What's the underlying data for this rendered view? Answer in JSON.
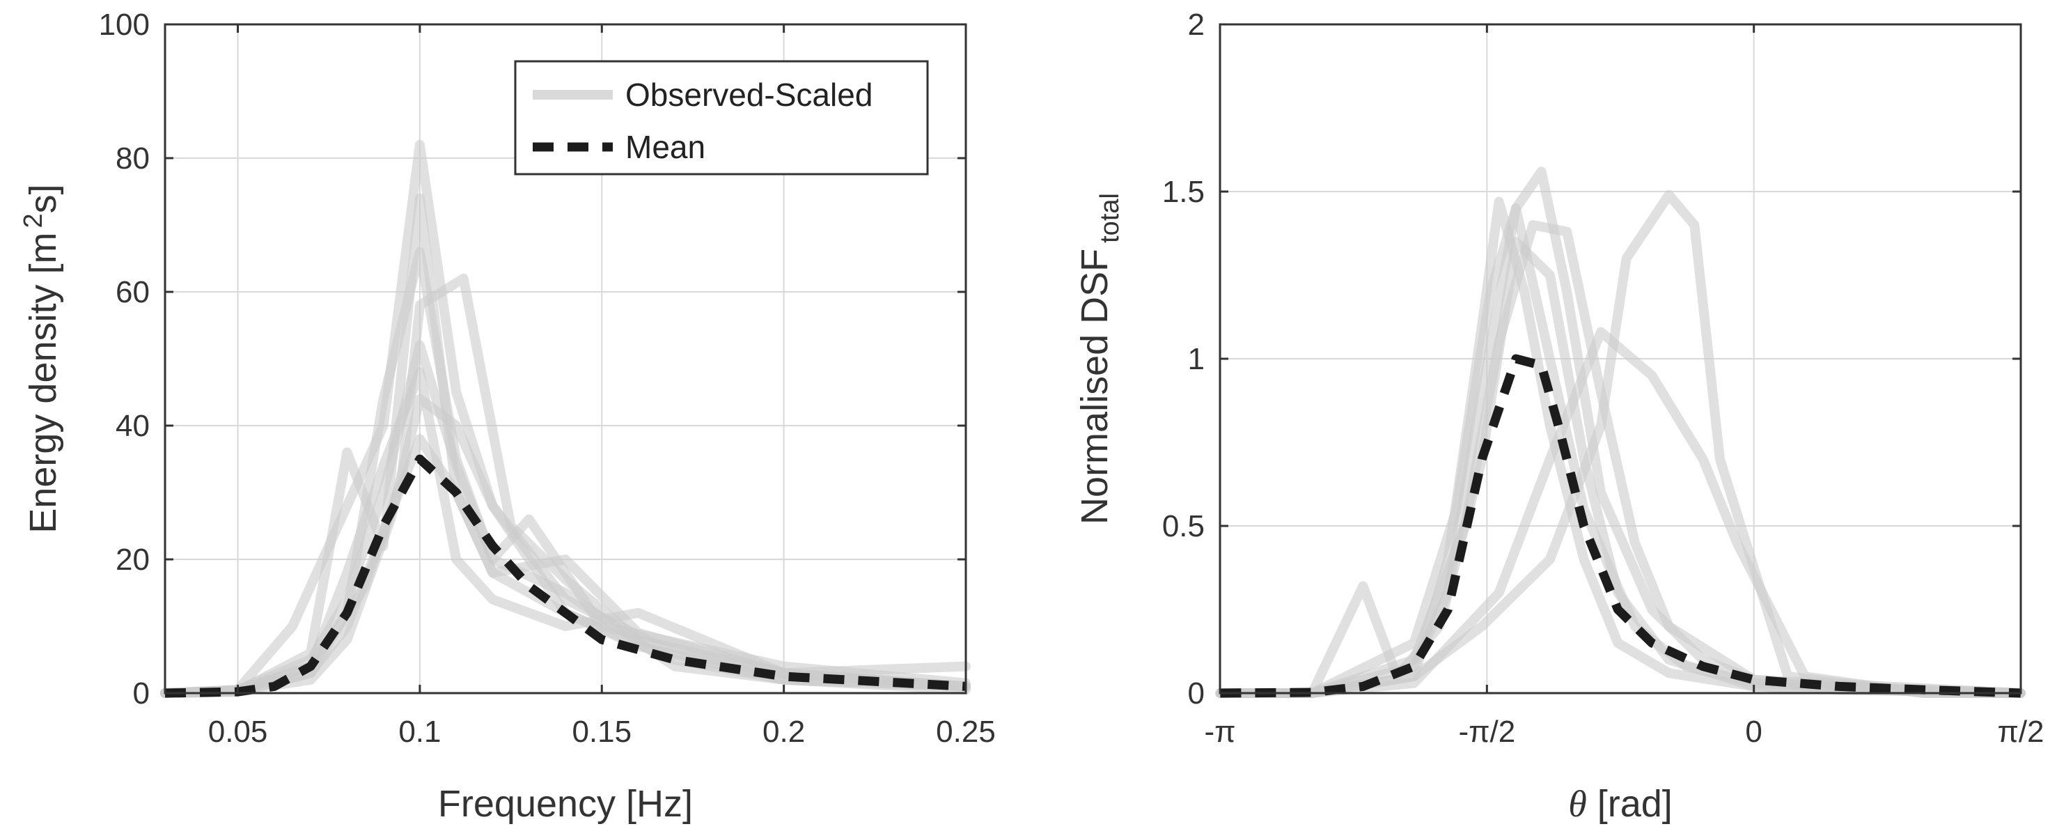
{
  "chart_data": [
    {
      "type": "line",
      "title": "",
      "xlabel": "Frequency [Hz]",
      "ylabel_main": "Energy density [m",
      "ylabel_sup": "2",
      "ylabel_tail": "s]",
      "xlim": [
        0.03,
        0.25
      ],
      "ylim": [
        0,
        100
      ],
      "xticks": [
        0.05,
        0.1,
        0.15,
        0.2,
        0.25
      ],
      "xtick_labels": [
        "0.05",
        "0.1",
        "0.15",
        "0.2",
        "0.25"
      ],
      "yticks": [
        0,
        20,
        40,
        60,
        80,
        100
      ],
      "ytick_labels": [
        "0",
        "20",
        "40",
        "60",
        "80",
        "100"
      ],
      "grid": true,
      "legend": {
        "position": "top-right",
        "entries": [
          {
            "name": "Observed-Scaled",
            "style": "solid-light-gray"
          },
          {
            "name": "Mean",
            "style": "dashed-black"
          }
        ]
      },
      "series": [
        {
          "name": "Mean",
          "x": [
            0.03,
            0.05,
            0.06,
            0.07,
            0.08,
            0.09,
            0.1,
            0.11,
            0.12,
            0.13,
            0.15,
            0.17,
            0.2,
            0.25
          ],
          "y": [
            0,
            0.2,
            1,
            4,
            12,
            25,
            35,
            30,
            22,
            16,
            8,
            5,
            2.5,
            1
          ]
        },
        {
          "name": "Observed-Scaled 1",
          "x": [
            0.03,
            0.05,
            0.065,
            0.08,
            0.09,
            0.1,
            0.11,
            0.12,
            0.14,
            0.17,
            0.2,
            0.25
          ],
          "y": [
            0,
            0.5,
            10,
            28,
            40,
            82,
            45,
            28,
            14,
            6,
            3,
            1
          ]
        },
        {
          "name": "Observed-Scaled 2",
          "x": [
            0.03,
            0.05,
            0.07,
            0.08,
            0.09,
            0.1,
            0.11,
            0.12,
            0.14,
            0.17,
            0.2,
            0.25
          ],
          "y": [
            0,
            0.3,
            6,
            36,
            22,
            74,
            30,
            18,
            12,
            5,
            2,
            1
          ]
        },
        {
          "name": "Observed-Scaled 3",
          "x": [
            0.03,
            0.05,
            0.07,
            0.08,
            0.09,
            0.1,
            0.11,
            0.12,
            0.14,
            0.17,
            0.2,
            0.25
          ],
          "y": [
            0,
            0.2,
            3,
            12,
            44,
            66,
            35,
            20,
            15,
            4,
            2,
            0.5
          ]
        },
        {
          "name": "Observed-Scaled 4",
          "x": [
            0.03,
            0.05,
            0.07,
            0.085,
            0.095,
            0.1,
            0.112,
            0.125,
            0.14,
            0.16,
            0.2,
            0.25
          ],
          "y": [
            0,
            0.4,
            4,
            16,
            32,
            58,
            62,
            25,
            17,
            8,
            3,
            1
          ]
        },
        {
          "name": "Observed-Scaled 5",
          "x": [
            0.03,
            0.05,
            0.07,
            0.08,
            0.092,
            0.1,
            0.11,
            0.12,
            0.14,
            0.16,
            0.2,
            0.25
          ],
          "y": [
            0,
            0.3,
            2,
            8,
            26,
            44,
            40,
            28,
            12,
            7,
            2,
            1
          ]
        },
        {
          "name": "Observed-Scaled 6",
          "x": [
            0.03,
            0.05,
            0.07,
            0.08,
            0.09,
            0.1,
            0.11,
            0.12,
            0.13,
            0.15,
            0.2,
            0.25
          ],
          "y": [
            0,
            0.5,
            5,
            14,
            30,
            52,
            34,
            20,
            26,
            10,
            4,
            1.5
          ]
        },
        {
          "name": "Observed-Scaled 7",
          "x": [
            0.03,
            0.05,
            0.07,
            0.08,
            0.09,
            0.1,
            0.11,
            0.12,
            0.14,
            0.16,
            0.2,
            0.25
          ],
          "y": [
            0,
            0.2,
            3,
            10,
            24,
            38,
            30,
            18,
            20,
            9,
            3,
            1
          ]
        },
        {
          "name": "Observed-Scaled 8",
          "x": [
            0.03,
            0.05,
            0.07,
            0.08,
            0.09,
            0.1,
            0.11,
            0.12,
            0.14,
            0.16,
            0.2,
            0.25
          ],
          "y": [
            0,
            0.4,
            4,
            18,
            34,
            48,
            20,
            14,
            10,
            12,
            3,
            4
          ]
        }
      ]
    },
    {
      "type": "line",
      "title": "",
      "xlabel_sym": "θ",
      "xlabel_tail": " [rad]",
      "ylabel_main": "Normalised DSF",
      "ylabel_sub": "total",
      "xlim": [
        -3.1416,
        1.5708
      ],
      "ylim": [
        0,
        2
      ],
      "xticks": [
        -3.1416,
        -1.5708,
        0,
        1.5708
      ],
      "xtick_labels": [
        "-π",
        "-π/2",
        "0",
        "π/2"
      ],
      "yticks": [
        0,
        0.5,
        1,
        1.5,
        2
      ],
      "ytick_labels": [
        "0",
        "0.5",
        "1",
        "1.5",
        "2"
      ],
      "grid": true,
      "series": [
        {
          "name": "Mean",
          "x": [
            -3.14,
            -2.6,
            -2.3,
            -2.0,
            -1.8,
            -1.6,
            -1.4,
            -1.25,
            -1.15,
            -1.0,
            -0.8,
            -0.6,
            -0.3,
            0,
            0.5,
            1.0,
            1.57
          ],
          "y": [
            0,
            0.002,
            0.02,
            0.08,
            0.25,
            0.7,
            1.0,
            0.98,
            0.8,
            0.5,
            0.25,
            0.15,
            0.08,
            0.04,
            0.02,
            0.01,
            0
          ]
        },
        {
          "name": "Observed-Scaled 1",
          "x": [
            -3.14,
            -2.6,
            -2.0,
            -1.8,
            -1.6,
            -1.5,
            -1.35,
            -1.2,
            -1.0,
            -0.8,
            -0.5,
            0,
            0.5,
            1.57
          ],
          "y": [
            0,
            0,
            0.05,
            0.4,
            1.1,
            1.47,
            1.2,
            0.8,
            0.4,
            0.15,
            0.06,
            0.02,
            0.01,
            0
          ]
        },
        {
          "name": "Observed-Scaled 2",
          "x": [
            -3.14,
            -2.6,
            -2.0,
            -1.8,
            -1.6,
            -1.4,
            -1.25,
            -1.1,
            -0.9,
            -0.6,
            -0.3,
            0,
            0.5,
            1.57
          ],
          "y": [
            0,
            0,
            0.08,
            0.3,
            0.9,
            1.45,
            1.56,
            1.2,
            0.6,
            0.25,
            0.1,
            0.04,
            0.01,
            0
          ]
        },
        {
          "name": "Observed-Scaled 3",
          "x": [
            -3.14,
            -2.6,
            -2.3,
            -2.1,
            -1.85,
            -1.6,
            -1.4,
            -1.2,
            -1.0,
            -0.8,
            -0.5,
            0,
            1.57
          ],
          "y": [
            0,
            0,
            0.32,
            0.05,
            0.2,
            0.7,
            1.35,
            1.25,
            0.7,
            0.3,
            0.1,
            0.02,
            0
          ]
        },
        {
          "name": "Observed-Scaled 4",
          "x": [
            -3.14,
            -2.6,
            -2.0,
            -1.7,
            -1.5,
            -1.3,
            -1.1,
            -0.9,
            -0.7,
            -0.5,
            0,
            1.57
          ],
          "y": [
            0,
            0,
            0.1,
            0.5,
            1.05,
            1.4,
            1.38,
            0.9,
            0.45,
            0.2,
            0.04,
            0
          ]
        },
        {
          "name": "Observed-Scaled 5",
          "x": [
            -3.14,
            -2.6,
            -2.0,
            -1.6,
            -1.2,
            -0.9,
            -0.75,
            -0.5,
            -0.35,
            -0.2,
            0.2,
            1.0,
            1.57
          ],
          "y": [
            0,
            0,
            0.05,
            0.2,
            0.4,
            0.8,
            1.3,
            1.49,
            1.4,
            0.7,
            0.05,
            0,
            0
          ]
        },
        {
          "name": "Observed-Scaled 6",
          "x": [
            -3.14,
            -2.6,
            -2.0,
            -1.5,
            -1.2,
            -0.9,
            -0.6,
            -0.3,
            -0.1,
            0.3,
            1.0,
            1.57
          ],
          "y": [
            0,
            0,
            0.03,
            0.3,
            0.7,
            1.08,
            0.95,
            0.7,
            0.45,
            0.05,
            0,
            0
          ]
        },
        {
          "name": "Observed-Scaled 7",
          "x": [
            -3.14,
            -2.6,
            -2.0,
            -1.75,
            -1.55,
            -1.4,
            -1.2,
            -1.0,
            -0.7,
            -0.4,
            0,
            1.57
          ],
          "y": [
            0,
            0,
            0.15,
            0.55,
            1.2,
            1.45,
            1.0,
            0.55,
            0.2,
            0.08,
            0.03,
            0
          ]
        }
      ]
    }
  ]
}
